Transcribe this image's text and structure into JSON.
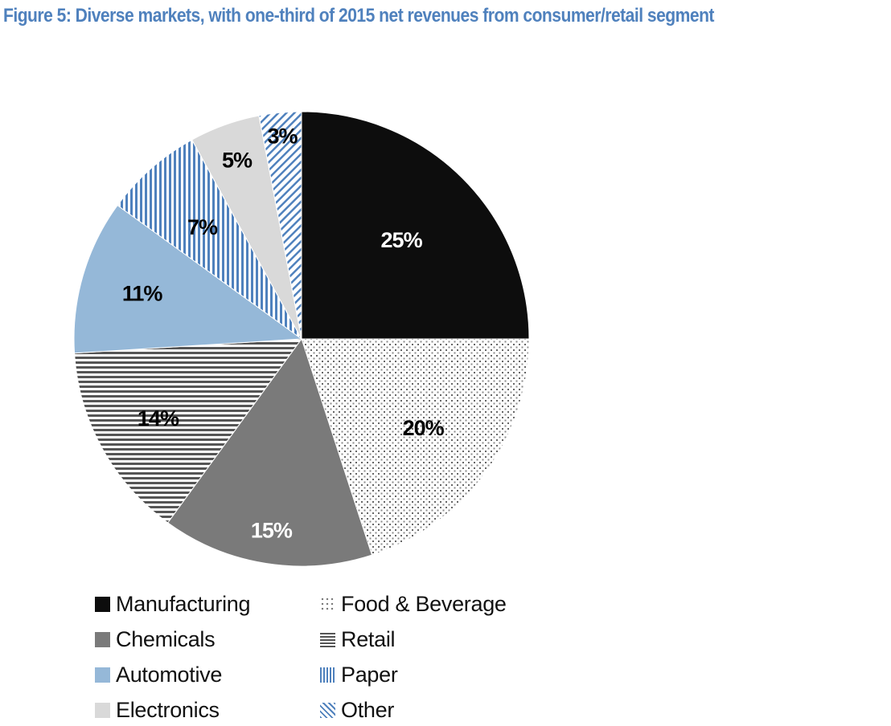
{
  "chart_data": {
    "type": "pie",
    "title": "Figure 5: Diverse markets, with one-third of 2015 net revenues from consumer/retail segment",
    "start": "12 o'clock",
    "direction": "clockwise",
    "unit": "%",
    "legend_position": "bottom-left",
    "slices": [
      {
        "label": "Manufacturing",
        "value": 25,
        "display": "25%",
        "fill": "#0d0d0d",
        "pattern": "solid",
        "label_color": "#ffffff"
      },
      {
        "label": "Food & Beverage",
        "value": 20,
        "display": "20%",
        "fill": "#ffffff",
        "pattern": "dots",
        "pattern_color": "#666666",
        "label_color": "#000000"
      },
      {
        "label": "Chemicals",
        "value": 15,
        "display": "15%",
        "fill": "#7a7a7a",
        "pattern": "solid",
        "label_color": "#ffffff"
      },
      {
        "label": "Retail",
        "value": 14,
        "display": "14%",
        "fill": "#ffffff",
        "pattern": "horizontal-lines",
        "pattern_color": "#555555",
        "label_color": "#000000"
      },
      {
        "label": "Automotive",
        "value": 11,
        "display": "11%",
        "fill": "#95b8d8",
        "pattern": "solid",
        "label_color": "#000000"
      },
      {
        "label": "Paper",
        "value": 7,
        "display": "7%",
        "fill": "#ffffff",
        "pattern": "vertical-lines",
        "pattern_color": "#4f81bd",
        "label_color": "#000000"
      },
      {
        "label": "Electronics",
        "value": 5,
        "display": "5%",
        "fill": "#d9d9d9",
        "pattern": "solid",
        "label_color": "#000000"
      },
      {
        "label": "Other",
        "value": 3,
        "display": "3%",
        "fill": "#ffffff",
        "pattern": "diagonal-lines",
        "pattern_color": "#4f81bd",
        "label_color": "#000000"
      }
    ],
    "legend": [
      [
        "Manufacturing",
        "Food & Beverage"
      ],
      [
        "Chemicals",
        "Retail"
      ],
      [
        "Automotive",
        "Paper"
      ],
      [
        "Electronics",
        "Other"
      ]
    ]
  }
}
